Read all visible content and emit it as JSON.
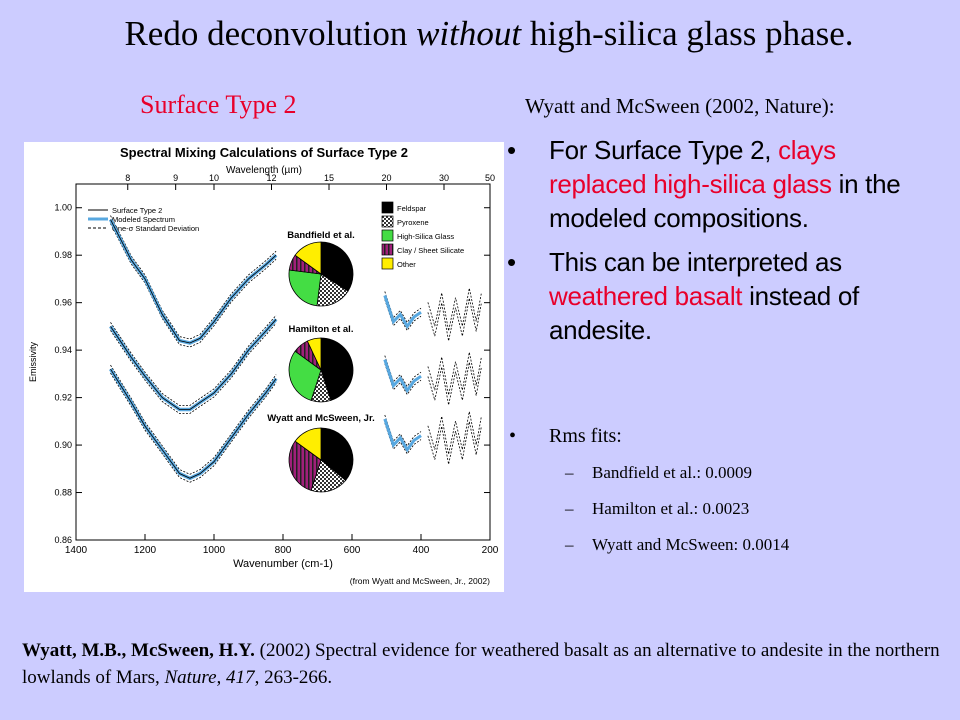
{
  "title": {
    "pre": "Redo deconvolution ",
    "emph": "without",
    "post": " high-silica glass phase."
  },
  "left_heading": "Surface Type 2",
  "right_heading": "Wyatt and McSween (2002, Nature):",
  "bullets": {
    "b1": {
      "pre": "For Surface Type 2, ",
      "red": "clays replaced high-silica glass",
      "post": " in the modeled compositions."
    },
    "b2": {
      "pre": "This can be interpreted as ",
      "red": "weathered basalt",
      "post": " instead of andesite."
    },
    "b3": "Rms fits:",
    "sub": [
      "Bandfield et al.:  0.0009",
      "Hamilton et al.:  0.0023",
      "Wyatt and McSween:  0.0014"
    ]
  },
  "citation": {
    "authors": "Wyatt, M.B., McSween, H.Y.",
    "text1": " (2002) Spectral evidence for weathered basalt as an alternative to andesite in the northern lowlands of Mars, ",
    "journal": "Nature, 417",
    "text2": ", 263-266."
  },
  "colors": {
    "background": "#ccccff",
    "accent_red": "#e8002b",
    "model_blue": "#58a8e0"
  },
  "chart_data": {
    "type": "line",
    "title": "Spectral Mixing Calculations of Surface Type 2",
    "xlabel": "Wavenumber (cm-1)",
    "x2label": "Wavelength (µm)",
    "ylabel": "Emissivity",
    "xlim": [
      1400,
      200
    ],
    "xticks": [
      "1400",
      "1200",
      "1000",
      "800",
      "600",
      "400",
      "200"
    ],
    "x2ticks": [
      "8",
      "9",
      "10",
      "12",
      "15",
      "20",
      "30",
      "50"
    ],
    "ylim": [
      0.86,
      1.01
    ],
    "yticks": [
      "1.00",
      "0.98",
      "0.96",
      "0.94",
      "0.92",
      "0.90",
      "0.88",
      "0.86"
    ],
    "legend": [
      "Surface Type 2",
      "Modeled Spectrum",
      "One-σ Standard Deviation"
    ],
    "source": "(from Wyatt and McSween, Jr., 2002)",
    "pie_legend": [
      {
        "name": "Feldspar",
        "color": "#000000"
      },
      {
        "name": "Pyroxene",
        "color": "#888888"
      },
      {
        "name": "High-Silica Glass",
        "color": "#44dd44"
      },
      {
        "name": "Clay / Sheet Silicate",
        "color": "#a0207a"
      },
      {
        "name": "Other",
        "color": "#ffee00"
      }
    ],
    "models": [
      {
        "name": "Bandfield et al.",
        "slices": [
          {
            "component": "Feldspar",
            "value": 34
          },
          {
            "component": "Pyroxene",
            "value": 18
          },
          {
            "component": "High-Silica Glass",
            "value": 25
          },
          {
            "component": "Clay / Sheet Silicate",
            "value": 8
          },
          {
            "component": "Other",
            "value": 15
          }
        ]
      },
      {
        "name": "Hamilton et al.",
        "slices": [
          {
            "component": "Feldspar",
            "value": 45
          },
          {
            "component": "Pyroxene",
            "value": 10
          },
          {
            "component": "High-Silica Glass",
            "value": 30
          },
          {
            "component": "Clay / Sheet Silicate",
            "value": 8
          },
          {
            "component": "Other",
            "value": 7
          }
        ]
      },
      {
        "name": "Wyatt and McSween, Jr.",
        "slices": [
          {
            "component": "Feldspar",
            "value": 36
          },
          {
            "component": "Pyroxene",
            "value": 19
          },
          {
            "component": "Clay / Sheet Silicate",
            "value": 30
          },
          {
            "component": "Other",
            "value": 15
          }
        ]
      }
    ],
    "series": [
      {
        "offset_label": "Bandfield",
        "wn": [
          1300,
          1240,
          1200,
          1150,
          1100,
          1070,
          1040,
          1000,
          950,
          900,
          850,
          820
        ],
        "emis": [
          0.995,
          0.978,
          0.97,
          0.955,
          0.944,
          0.943,
          0.945,
          0.952,
          0.962,
          0.97,
          0.976,
          0.98
        ]
      },
      {
        "offset_label": "Hamilton",
        "wn": [
          1300,
          1240,
          1200,
          1150,
          1100,
          1070,
          1040,
          1000,
          950,
          900,
          850,
          820
        ],
        "emis": [
          0.95,
          0.937,
          0.929,
          0.92,
          0.915,
          0.915,
          0.918,
          0.922,
          0.93,
          0.94,
          0.948,
          0.953
        ]
      },
      {
        "offset_label": "Wyatt",
        "wn": [
          1300,
          1240,
          1200,
          1150,
          1100,
          1070,
          1040,
          1000,
          950,
          900,
          850,
          820
        ],
        "emis": [
          0.932,
          0.918,
          0.908,
          0.898,
          0.888,
          0.886,
          0.888,
          0.893,
          0.903,
          0.913,
          0.922,
          0.928
        ]
      }
    ]
  }
}
